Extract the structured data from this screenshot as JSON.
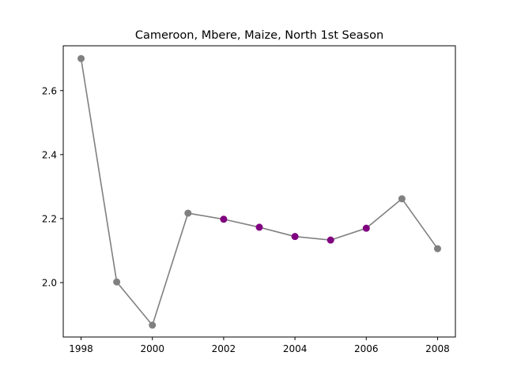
{
  "chart_data": {
    "type": "line",
    "title": "Cameroon, Mbere, Maize, North 1st Season",
    "xlabel": "",
    "ylabel": "",
    "x": [
      1998,
      1999,
      2000,
      2001,
      2002,
      2003,
      2004,
      2005,
      2006,
      2007,
      2008
    ],
    "values": [
      2.7,
      2.002,
      1.867,
      2.217,
      2.198,
      2.173,
      2.144,
      2.133,
      2.17,
      2.262,
      2.106
    ],
    "highlighted_x": [
      2002,
      2003,
      2004,
      2005,
      2006
    ],
    "xlim": [
      1997.5,
      2008.5
    ],
    "ylim": [
      1.83,
      2.74
    ],
    "xticks": [
      1998,
      2000,
      2002,
      2004,
      2006,
      2008
    ],
    "yticks": [
      2.0,
      2.2,
      2.4,
      2.6
    ],
    "xtick_labels": [
      "1998",
      "2000",
      "2002",
      "2004",
      "2006",
      "2008"
    ],
    "ytick_labels": [
      "2.0",
      "2.2",
      "2.4",
      "2.6"
    ],
    "grid": false,
    "colors": {
      "line": "#808080",
      "marker": "#808080",
      "highlight": "#800080"
    }
  }
}
